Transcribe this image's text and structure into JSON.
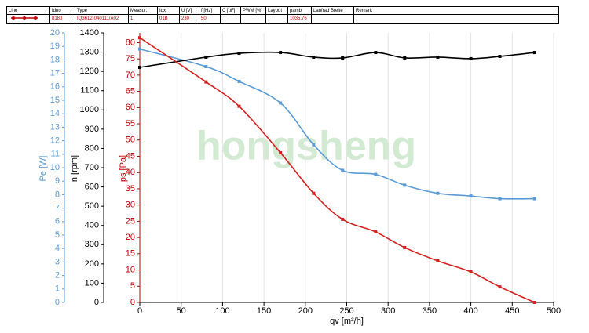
{
  "header": {
    "columns": [
      "Line",
      "Idno",
      "Type",
      "Measur.",
      "Idx.",
      "U [V]",
      "f [Hz]",
      "C [uF]",
      "PWM [%]",
      "Layout",
      "pamb",
      "Laufrad Breite",
      "Remark"
    ],
    "row": [
      null,
      "8180",
      "IQ3612-040111/A02",
      "1",
      "01B",
      "230",
      "50",
      null,
      null,
      null,
      "1035.76",
      null,
      null
    ]
  },
  "chart_data": {
    "type": "line",
    "watermark": "hongsheng",
    "x": [
      0,
      80,
      120,
      170,
      210,
      245,
      285,
      320,
      360,
      400,
      435,
      477
    ],
    "xlim": [
      0,
      500
    ],
    "xticks": [
      0,
      50,
      100,
      150,
      200,
      250,
      300,
      350,
      400,
      450,
      500
    ],
    "xlabel": "qv [m³/h]",
    "grid": true,
    "y_axes": [
      {
        "label": "Pe [W]",
        "color": "#5b9bd5",
        "lim": [
          0,
          20
        ],
        "ticks": [
          0,
          1,
          2,
          3,
          4,
          5,
          6,
          7,
          8,
          9,
          10,
          11,
          12,
          13,
          14,
          15,
          16,
          17,
          18,
          19,
          20
        ]
      },
      {
        "label": "n [rpm]",
        "color": "#000000",
        "lim": [
          0,
          1400
        ],
        "ticks": [
          0,
          100,
          200,
          300,
          400,
          500,
          600,
          700,
          800,
          900,
          1000,
          1100,
          1200,
          1300,
          1400
        ]
      },
      {
        "label": "ps [Pa]",
        "color": "#c00000",
        "lim": [
          0,
          83
        ],
        "ticks": [
          0,
          5,
          10,
          15,
          20,
          25,
          30,
          35,
          40,
          45,
          50,
          55,
          60,
          65,
          70,
          75,
          80
        ]
      }
    ],
    "series": [
      {
        "name": "Pe",
        "axis": 0,
        "color": "#5b9bd5",
        "values": [
          18.8,
          17.5,
          16.4,
          14.8,
          11.7,
          9.8,
          9.5,
          8.7,
          8.1,
          7.9,
          7.7,
          7.7
        ]
      },
      {
        "name": "n",
        "axis": 1,
        "color": "#000000",
        "values": [
          1221,
          1274,
          1294,
          1298,
          1274,
          1270,
          1298,
          1270,
          1274,
          1266,
          1278,
          1298
        ]
      },
      {
        "name": "ps",
        "axis": 2,
        "color": "#d42020",
        "values": [
          81.5,
          67.9,
          60.4,
          46.1,
          33.6,
          25.6,
          21.7,
          16.9,
          12.8,
          9.4,
          4.8,
          0
        ]
      }
    ]
  }
}
